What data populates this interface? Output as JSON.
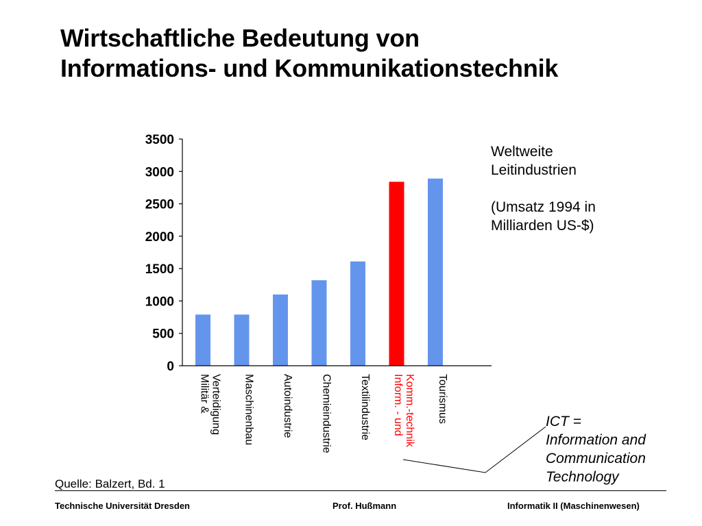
{
  "title": {
    "line1": "Wirtschaftliche Bedeutung von",
    "line2": "Informations- und Kommunikationstechnik"
  },
  "chart_data": {
    "type": "bar",
    "categories": [
      [
        "Militär &",
        "Verteidigung"
      ],
      [
        "Maschinenbau"
      ],
      [
        "Autoindustrie"
      ],
      [
        "Chemieindustrie"
      ],
      [
        "Textilindustrie"
      ],
      [
        "Inform. - und",
        "Komm.-technik"
      ],
      [
        "Tourismus"
      ]
    ],
    "values": [
      790,
      790,
      1100,
      1320,
      1610,
      2840,
      2890
    ],
    "bar_colors": [
      "#6495ed",
      "#6495ed",
      "#6495ed",
      "#6495ed",
      "#6495ed",
      "#ff0000",
      "#6495ed"
    ],
    "label_colors": [
      "#000000",
      "#000000",
      "#000000",
      "#000000",
      "#000000",
      "#ff0000",
      "#000000"
    ],
    "ylim": [
      0,
      3500
    ],
    "yticks": [
      0,
      500,
      1000,
      1500,
      2000,
      2500,
      3000,
      3500
    ],
    "grid": false,
    "xlabel": "",
    "ylabel": ""
  },
  "side_note": {
    "line1": "Weltweite",
    "line2": "Leitindustrien",
    "line3": "(Umsatz 1994 in",
    "line4": "Milliarden US-$)"
  },
  "ict_note": {
    "line1": "ICT =",
    "line2": "Information and",
    "line3": "Communication",
    "line4": "Technology"
  },
  "source": "Quelle: Balzert, Bd. 1",
  "footer": {
    "left": "Technische Universität Dresden",
    "center": "Prof. Hußmann",
    "right": "Informatik II (Maschinenwesen)"
  }
}
